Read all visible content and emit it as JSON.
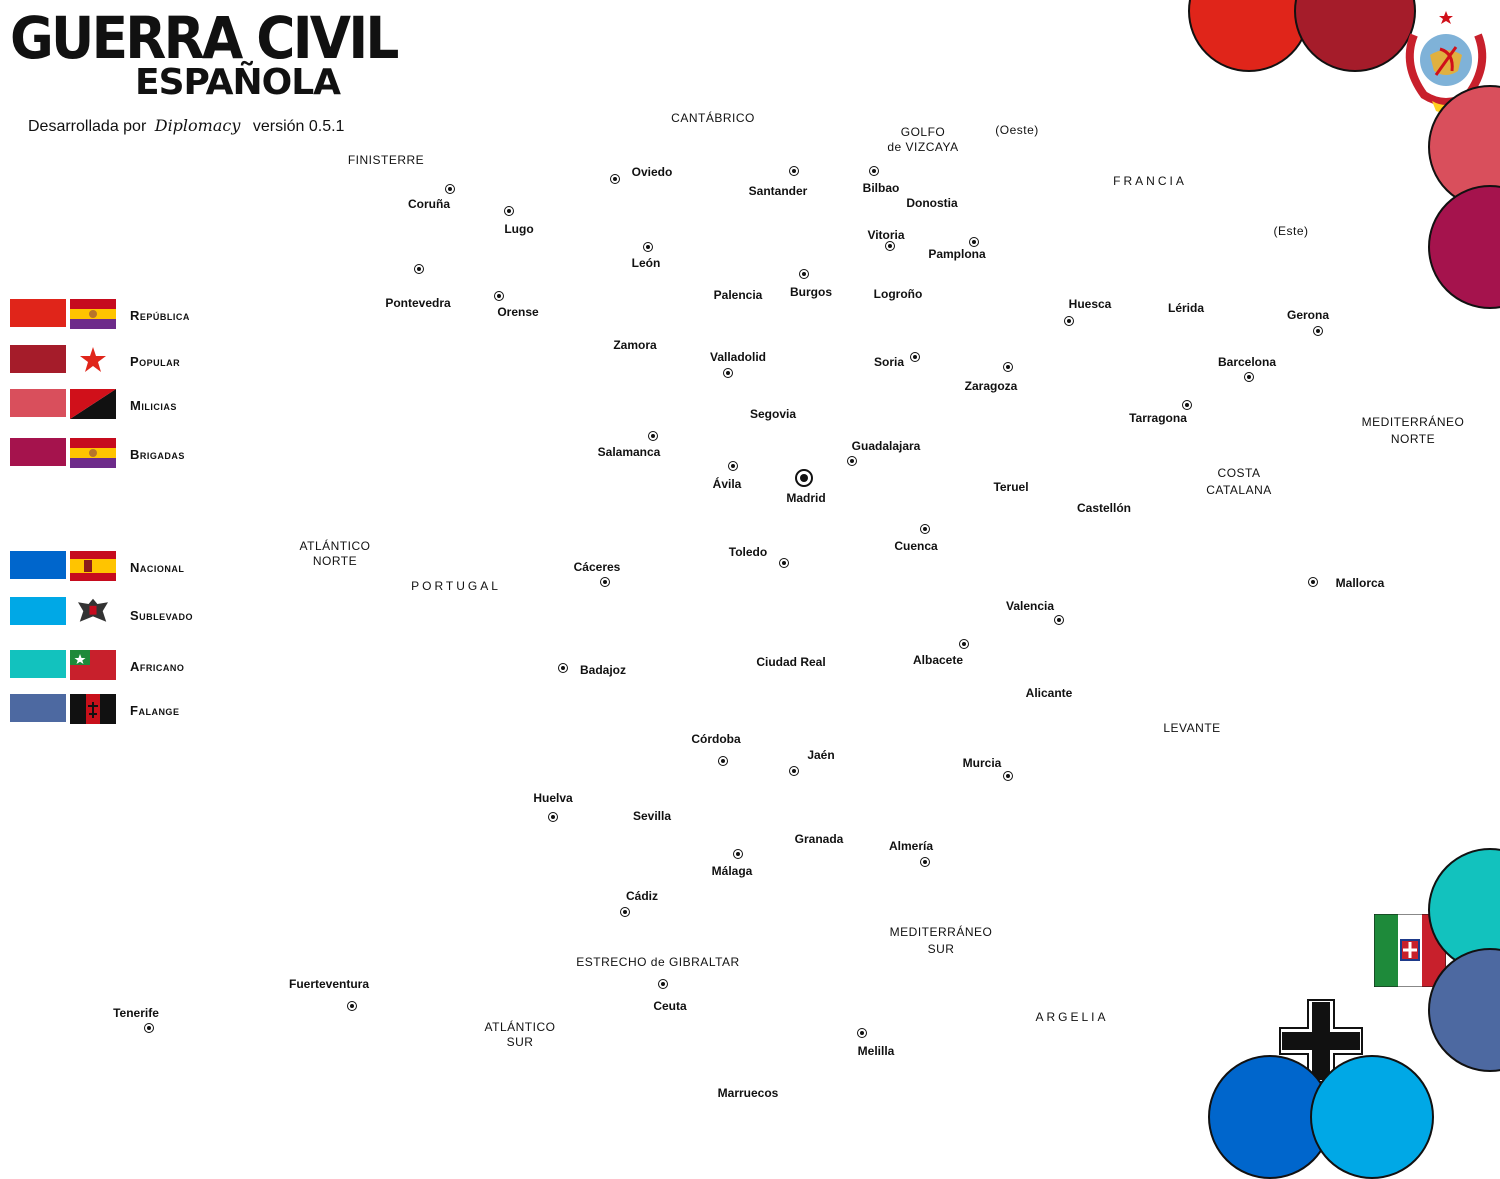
{
  "title": {
    "main": "GUERRA CIVIL",
    "sub": "ESPAÑOLA"
  },
  "credit": {
    "prefix": "Desarrollada por",
    "brand": "Diplomacy",
    "version": "versión  0.5.1"
  },
  "factions": [
    {
      "name": "República",
      "color": "#e0251a",
      "flag": "republic"
    },
    {
      "name": "Popular",
      "color": "#a51c2a",
      "flag": "star"
    },
    {
      "name": "Milicias",
      "color": "#d94f5c",
      "flag": "anarchist"
    },
    {
      "name": "Brigadas",
      "color": "#a5134d",
      "flag": "republic"
    },
    {
      "name": "Nacional",
      "color": "#0066cc",
      "flag": "nationalist"
    },
    {
      "name": "Sublevado",
      "color": "#00a8e6",
      "flag": "eagle"
    },
    {
      "name": "Africano",
      "color": "#12c2be",
      "flag": "africano"
    },
    {
      "name": "Falange",
      "color": "#4d69a1",
      "flag": "falange"
    }
  ],
  "regions": [
    {
      "id": "cantabrico",
      "text": "CANTÁBRICO"
    },
    {
      "id": "golfo",
      "text": "GOLFO"
    },
    {
      "id": "vizcaya",
      "text": "de VIZCAYA"
    },
    {
      "id": "oeste",
      "text": "(Oeste)"
    },
    {
      "id": "finisterre",
      "text": "FINISTERRE"
    },
    {
      "id": "francia",
      "text": "FRANCIA"
    },
    {
      "id": "este",
      "text": "(Este)"
    },
    {
      "id": "med-norte-1",
      "text": "MEDITERRÁNEO"
    },
    {
      "id": "med-norte-2",
      "text": "NORTE"
    },
    {
      "id": "costa-1",
      "text": "COSTA"
    },
    {
      "id": "costa-2",
      "text": "CATALANA"
    },
    {
      "id": "atl-norte-1",
      "text": "ATLÁNTICO"
    },
    {
      "id": "atl-norte-2",
      "text": "NORTE"
    },
    {
      "id": "portugal",
      "text": "PORTUGAL"
    },
    {
      "id": "levante",
      "text": "LEVANTE"
    },
    {
      "id": "med-sur-1",
      "text": "MEDITERRÁNEO"
    },
    {
      "id": "med-sur-2",
      "text": "SUR"
    },
    {
      "id": "estrecho",
      "text": "ESTRECHO de GIBRALTAR"
    },
    {
      "id": "atl-sur-1",
      "text": "ATLÁNTICO"
    },
    {
      "id": "atl-sur-2",
      "text": "SUR"
    },
    {
      "id": "argelia",
      "text": "ARGELIA"
    },
    {
      "id": "marruecos",
      "text": "Marruecos"
    }
  ],
  "cities": [
    "Oviedo",
    "Santander",
    "Bilbao",
    "Donostia",
    "Coruña",
    "Lugo",
    "León",
    "Vitoria",
    "Pamplona",
    "Pontevedra",
    "Orense",
    "Palencia",
    "Burgos",
    "Logroño",
    "Huesca",
    "Lérida",
    "Gerona",
    "Zamora",
    "Valladolid",
    "Soria",
    "Zaragoza",
    "Barcelona",
    "Segovia",
    "Tarragona",
    "Salamanca",
    "Guadalajara",
    "Ávila",
    "Madrid",
    "Teruel",
    "Castellón",
    "Toledo",
    "Cuenca",
    "Cáceres",
    "Mallorca",
    "Valencia",
    "Badajoz",
    "Ciudad Real",
    "Albacete",
    "Alicante",
    "Córdoba",
    "Jaén",
    "Murcia",
    "Huelva",
    "Sevilla",
    "Granada",
    "Almería",
    "Málaga",
    "Cádiz",
    "Fuerteventura",
    "Ceuta",
    "Tenerife",
    "Melilla"
  ]
}
